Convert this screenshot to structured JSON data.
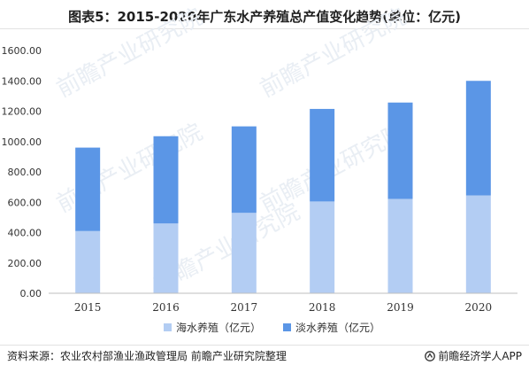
{
  "title": "图表5：2015-2020年广东水产养殖总产值变化趋势(单位：亿元)",
  "chart_data": {
    "type": "bar",
    "stacked": true,
    "categories": [
      "2015",
      "2016",
      "2017",
      "2018",
      "2019",
      "2020"
    ],
    "series": [
      {
        "name": "海水养殖（亿元）",
        "color": "#b3cdf3",
        "values": [
          410,
          460,
          530,
          605,
          622,
          645
        ]
      },
      {
        "name": "淡水养殖（亿元）",
        "color": "#5b96e6",
        "values": [
          550,
          575,
          570,
          610,
          635,
          755
        ]
      }
    ],
    "y_ticks": [
      "0.00",
      "200.00",
      "400.00",
      "600.00",
      "800.00",
      "1000.00",
      "1200.00",
      "1400.00",
      "1600.00"
    ],
    "ylim": [
      0,
      1600
    ],
    "grid": false,
    "legend_position": "bottom"
  },
  "watermark": "前瞻产业研究院",
  "footer": {
    "source": "资料来源：农业农村部渔业渔政管理局 前瞻产业研究院整理",
    "brand": "前瞻经济学人APP",
    "brand_icon": "qianzhan-logo-icon"
  }
}
